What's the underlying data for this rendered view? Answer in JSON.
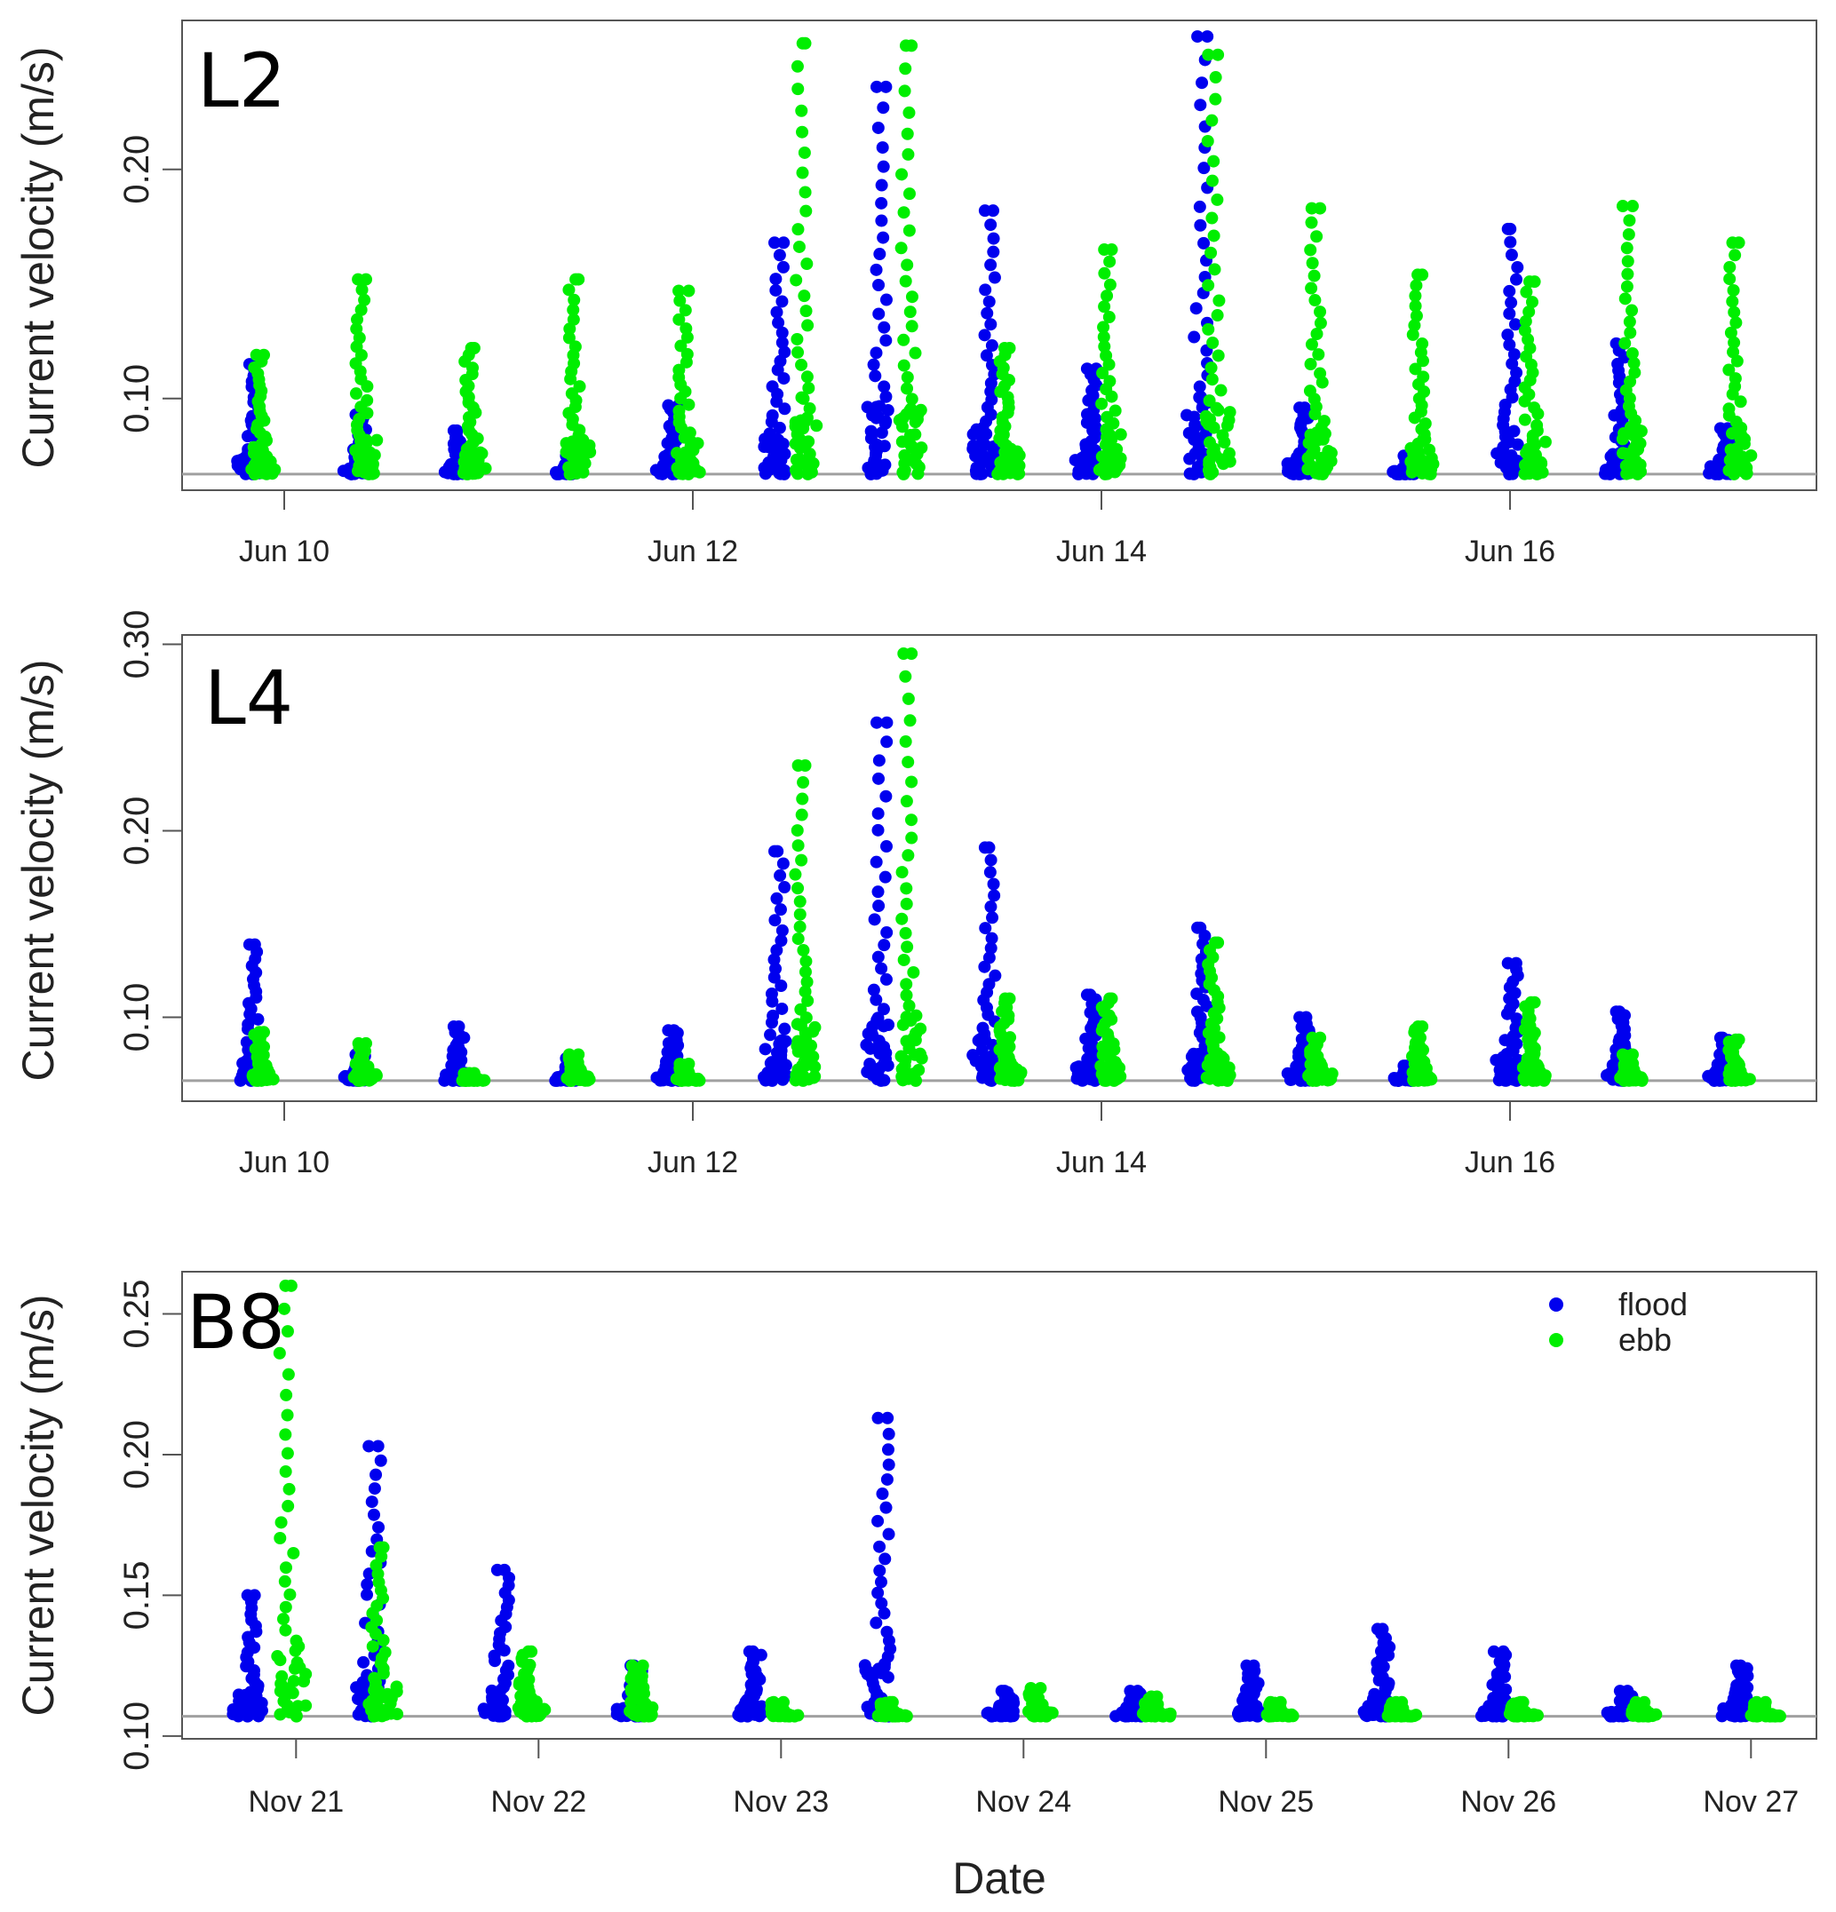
{
  "chart_data": [
    {
      "type": "scatter",
      "panel_label": "L2",
      "ylabel": "Current velocity (m/s)",
      "xlabel": "",
      "x_unit": "days since Jun 10",
      "x_ticks": [
        {
          "value": 0,
          "label": "Jun 10"
        },
        {
          "value": 2,
          "label": "Jun 12"
        },
        {
          "value": 4,
          "label": "Jun 14"
        },
        {
          "value": 6,
          "label": "Jun 16"
        }
      ],
      "xlim": [
        -0.5,
        7.5
      ],
      "y_ticks": [
        {
          "value": 0.1,
          "label": "0.10"
        },
        {
          "value": 0.2,
          "label": "0.20"
        }
      ],
      "ylim": [
        0.06,
        0.265
      ],
      "baseline": 0.067,
      "grid": false,
      "series": [
        {
          "name": "flood",
          "color": "#0000EE",
          "clusters": [
            {
              "x": -0.17,
              "max": 0.115
            },
            {
              "x": 0.35,
              "max": 0.093
            },
            {
              "x": 0.83,
              "max": 0.086
            },
            {
              "x": 1.38,
              "max": 0.075
            },
            {
              "x": 1.88,
              "max": 0.097
            },
            {
              "x": 2.4,
              "max": 0.168
            },
            {
              "x": 2.9,
              "max": 0.236
            },
            {
              "x": 3.43,
              "max": 0.182
            },
            {
              "x": 3.93,
              "max": 0.113
            },
            {
              "x": 4.47,
              "max": 0.258
            },
            {
              "x": 4.97,
              "max": 0.096
            },
            {
              "x": 5.48,
              "max": 0.075
            },
            {
              "x": 5.99,
              "max": 0.174
            },
            {
              "x": 6.52,
              "max": 0.124
            },
            {
              "x": 7.03,
              "max": 0.087
            }
          ]
        },
        {
          "name": "ebb",
          "color": "#00EE00",
          "clusters": [
            {
              "x": -0.1,
              "max": 0.119
            },
            {
              "x": 0.4,
              "max": 0.152
            },
            {
              "x": 0.93,
              "max": 0.122
            },
            {
              "x": 1.44,
              "max": 0.152
            },
            {
              "x": 1.98,
              "max": 0.147
            },
            {
              "x": 2.55,
              "max": 0.255
            },
            {
              "x": 3.07,
              "max": 0.254
            },
            {
              "x": 3.55,
              "max": 0.122
            },
            {
              "x": 4.05,
              "max": 0.165
            },
            {
              "x": 4.57,
              "max": 0.25
            },
            {
              "x": 5.07,
              "max": 0.183
            },
            {
              "x": 5.57,
              "max": 0.154
            },
            {
              "x": 6.12,
              "max": 0.151
            },
            {
              "x": 6.6,
              "max": 0.184
            },
            {
              "x": 7.12,
              "max": 0.168
            }
          ]
        }
      ]
    },
    {
      "type": "scatter",
      "panel_label": "L4",
      "ylabel": "Current velocity (m/s)",
      "xlabel": "",
      "x_unit": "days since Jun 10",
      "x_ticks": [
        {
          "value": 0,
          "label": "Jun 10"
        },
        {
          "value": 2,
          "label": "Jun 12"
        },
        {
          "value": 4,
          "label": "Jun 14"
        },
        {
          "value": 6,
          "label": "Jun 16"
        }
      ],
      "xlim": [
        -0.5,
        7.5
      ],
      "y_ticks": [
        {
          "value": 0.1,
          "label": "0.10"
        },
        {
          "value": 0.2,
          "label": "0.20"
        },
        {
          "value": 0.3,
          "label": "0.30"
        }
      ],
      "ylim": [
        0.055,
        0.305
      ],
      "baseline": 0.066,
      "grid": false,
      "series": [
        {
          "name": "flood",
          "color": "#0000EE",
          "clusters": [
            {
              "x": -0.17,
              "max": 0.139
            },
            {
              "x": 0.35,
              "max": 0.08
            },
            {
              "x": 0.83,
              "max": 0.095
            },
            {
              "x": 1.38,
              "max": 0.078
            },
            {
              "x": 1.88,
              "max": 0.093
            },
            {
              "x": 2.4,
              "max": 0.189
            },
            {
              "x": 2.9,
              "max": 0.258
            },
            {
              "x": 3.43,
              "max": 0.191
            },
            {
              "x": 3.93,
              "max": 0.112
            },
            {
              "x": 4.47,
              "max": 0.148
            },
            {
              "x": 4.97,
              "max": 0.1
            },
            {
              "x": 5.48,
              "max": 0.074
            },
            {
              "x": 5.99,
              "max": 0.129
            },
            {
              "x": 6.52,
              "max": 0.103
            },
            {
              "x": 7.03,
              "max": 0.089
            }
          ]
        },
        {
          "name": "ebb",
          "color": "#00EE00",
          "clusters": [
            {
              "x": -0.1,
              "max": 0.092
            },
            {
              "x": 0.4,
              "max": 0.086
            },
            {
              "x": 0.93,
              "max": 0.07
            },
            {
              "x": 1.44,
              "max": 0.08
            },
            {
              "x": 1.98,
              "max": 0.075
            },
            {
              "x": 2.55,
              "max": 0.235
            },
            {
              "x": 3.07,
              "max": 0.295
            },
            {
              "x": 3.55,
              "max": 0.11
            },
            {
              "x": 4.05,
              "max": 0.11
            },
            {
              "x": 4.57,
              "max": 0.14
            },
            {
              "x": 5.07,
              "max": 0.089
            },
            {
              "x": 5.57,
              "max": 0.095
            },
            {
              "x": 6.12,
              "max": 0.108
            },
            {
              "x": 6.6,
              "max": 0.08
            },
            {
              "x": 7.12,
              "max": 0.088
            }
          ]
        }
      ]
    },
    {
      "type": "scatter",
      "panel_label": "B8",
      "ylabel": "Current velocity (m/s)",
      "xlabel": "Date",
      "x_unit": "days since Nov 21",
      "x_ticks": [
        {
          "value": 0,
          "label": "Nov 21"
        },
        {
          "value": 1,
          "label": "Nov 22"
        },
        {
          "value": 2,
          "label": "Nov 23"
        },
        {
          "value": 3,
          "label": "Nov 24"
        },
        {
          "value": 4,
          "label": "Nov 25"
        },
        {
          "value": 5,
          "label": "Nov 26"
        },
        {
          "value": 6,
          "label": "Nov 27"
        }
      ],
      "xlim": [
        -0.47,
        6.27
      ],
      "y_ticks": [
        {
          "value": 0.1,
          "label": "0.10"
        },
        {
          "value": 0.15,
          "label": "0.15"
        },
        {
          "value": 0.2,
          "label": "0.20"
        },
        {
          "value": 0.25,
          "label": "0.25"
        }
      ],
      "ylim": [
        0.099,
        0.265
      ],
      "baseline": 0.107,
      "grid": false,
      "legend": {
        "position": "top-right",
        "entries": [
          {
            "label": "flood",
            "color": "#0000EE"
          },
          {
            "label": "ebb",
            "color": "#00EE00"
          }
        ]
      },
      "series": [
        {
          "name": "flood",
          "color": "#0000EE",
          "clusters": [
            {
              "x": -0.2,
              "max": 0.15
            },
            {
              "x": 0.3,
              "max": 0.203
            },
            {
              "x": 0.83,
              "max": 0.159
            },
            {
              "x": 1.38,
              "max": 0.125
            },
            {
              "x": 1.87,
              "max": 0.13
            },
            {
              "x": 2.4,
              "max": 0.213
            },
            {
              "x": 2.91,
              "max": 0.116
            },
            {
              "x": 3.44,
              "max": 0.116
            },
            {
              "x": 3.92,
              "max": 0.125
            },
            {
              "x": 4.46,
              "max": 0.138
            },
            {
              "x": 4.94,
              "max": 0.13
            },
            {
              "x": 5.46,
              "max": 0.116
            },
            {
              "x": 5.94,
              "max": 0.125
            }
          ]
        },
        {
          "name": "ebb",
          "color": "#00EE00",
          "clusters": [
            {
              "x": -0.02,
              "max": 0.26
            },
            {
              "x": 0.36,
              "max": 0.167
            },
            {
              "x": 0.97,
              "max": 0.13
            },
            {
              "x": 1.43,
              "max": 0.125
            },
            {
              "x": 2.01,
              "max": 0.112
            },
            {
              "x": 2.46,
              "max": 0.112
            },
            {
              "x": 3.07,
              "max": 0.117
            },
            {
              "x": 3.55,
              "max": 0.114
            },
            {
              "x": 4.06,
              "max": 0.112
            },
            {
              "x": 4.56,
              "max": 0.112
            },
            {
              "x": 5.06,
              "max": 0.112
            },
            {
              "x": 5.56,
              "max": 0.112
            },
            {
              "x": 6.06,
              "max": 0.112
            }
          ]
        }
      ]
    }
  ]
}
